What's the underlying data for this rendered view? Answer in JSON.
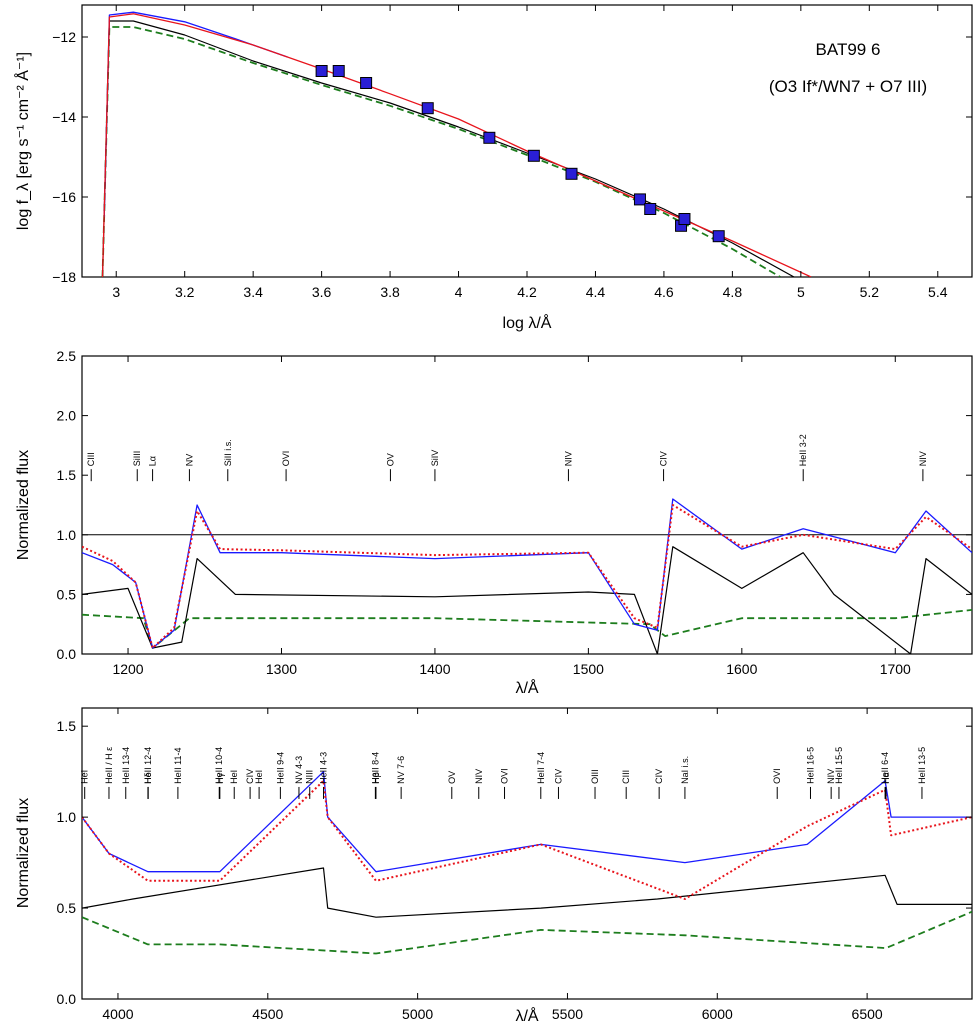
{
  "chart_data": [
    {
      "type": "scatter",
      "xlabel": "log λ/Å",
      "ylabel": "log f_λ [erg s⁻¹ cm⁻² Å⁻¹]",
      "xlim": [
        2.9,
        5.5
      ],
      "ylim": [
        -18,
        -11.2
      ],
      "xticks": [
        3.0,
        3.2,
        3.4,
        3.6,
        3.8,
        4.0,
        4.2,
        4.4,
        4.6,
        4.8,
        5.0,
        5.2,
        5.4
      ],
      "yticks": [
        -18,
        -16,
        -14,
        -12
      ],
      "annotations": [
        "BAT99 6",
        "(O3 If*/WN7 + O7 III)"
      ],
      "photometry": {
        "x": [
          3.6,
          3.65,
          3.73,
          3.91,
          4.09,
          4.22,
          4.33,
          4.53,
          4.56,
          4.65,
          4.66,
          4.76
        ],
        "y": [
          -12.85,
          -12.85,
          -13.15,
          -13.78,
          -14.52,
          -14.97,
          -15.42,
          -16.06,
          -16.3,
          -16.72,
          -16.55,
          -16.98
        ]
      },
      "series": [
        {
          "style": "red-solid",
          "x": [
            2.96,
            2.98,
            3.05,
            3.2,
            3.4,
            3.6,
            3.8,
            4.0,
            4.2,
            4.4,
            4.6,
            4.8,
            5.03
          ],
          "y": [
            -18,
            -11.5,
            -11.42,
            -11.7,
            -12.2,
            -12.8,
            -13.42,
            -14.05,
            -14.85,
            -15.6,
            -16.35,
            -17.1,
            -18
          ]
        },
        {
          "style": "blue-solid",
          "x": [
            2.965,
            2.98,
            3.05,
            3.2,
            3.35,
            3.5
          ],
          "y": [
            -16.5,
            -11.45,
            -11.38,
            -11.62,
            -12.05,
            -12.5
          ]
        },
        {
          "style": "black-solid",
          "x": [
            2.96,
            2.98,
            3.05,
            3.2,
            3.4,
            3.6,
            3.8,
            4.0,
            4.2,
            4.4,
            4.6,
            4.8,
            4.98
          ],
          "y": [
            -18,
            -11.6,
            -11.6,
            -11.95,
            -12.6,
            -13.15,
            -13.65,
            -14.25,
            -14.9,
            -15.55,
            -16.3,
            -17.15,
            -18
          ]
        },
        {
          "style": "green-dashed",
          "x": [
            2.96,
            2.98,
            3.05,
            3.2,
            3.4,
            3.6,
            3.8,
            4.0,
            4.2,
            4.4,
            4.6,
            4.8,
            4.94
          ],
          "y": [
            -18,
            -11.75,
            -11.75,
            -12.05,
            -12.65,
            -13.2,
            -13.72,
            -14.3,
            -14.95,
            -15.62,
            -16.4,
            -17.3,
            -18
          ]
        }
      ]
    },
    {
      "type": "line",
      "xlabel": "λ/Å",
      "ylabel": "Normalized flux",
      "xlim": [
        1170,
        1750
      ],
      "ylim": [
        0,
        2.5
      ],
      "xticks": [
        1200,
        1300,
        1400,
        1500,
        1600,
        1700
      ],
      "yticks": [
        0.0,
        0.5,
        1.0,
        1.5,
        2.0,
        2.5
      ],
      "ytick_labels": [
        "0.0",
        "0.5",
        "1.0",
        "1.5",
        "2.0",
        "2.5"
      ],
      "continuum": 1.0,
      "line_ids": [
        {
          "label": "CIII",
          "x": 1176,
          "y": 1.45
        },
        {
          "label": "SiIII",
          "x": 1206,
          "y": 1.45
        },
        {
          "label": "Lα",
          "x": 1216,
          "y": 1.45
        },
        {
          "label": "NV",
          "x": 1240,
          "y": 1.45
        },
        {
          "label": "SiII i.s.",
          "x": 1265,
          "y": 1.45
        },
        {
          "label": "OVI",
          "x": 1303,
          "y": 1.45
        },
        {
          "label": "OV",
          "x": 1371,
          "y": 1.45
        },
        {
          "label": "SiIV",
          "x": 1400,
          "y": 1.45
        },
        {
          "label": "NIV",
          "x": 1487,
          "y": 1.45
        },
        {
          "label": "CIV",
          "x": 1549,
          "y": 1.45
        },
        {
          "label": "HeII 3-2",
          "x": 1640,
          "y": 1.45
        },
        {
          "label": "NIV",
          "x": 1718,
          "y": 1.45
        }
      ],
      "series": [
        {
          "style": "blue-solid",
          "x": [
            1170,
            1190,
            1205,
            1216,
            1230,
            1245,
            1260,
            1300,
            1400,
            1500,
            1530,
            1545,
            1555,
            1600,
            1640,
            1700,
            1720,
            1750
          ],
          "y": [
            0.85,
            0.75,
            0.6,
            0.05,
            0.2,
            1.25,
            0.85,
            0.85,
            0.8,
            0.85,
            0.25,
            0.2,
            1.3,
            0.88,
            1.05,
            0.85,
            1.2,
            0.85
          ]
        },
        {
          "style": "red-dotted",
          "x": [
            1170,
            1190,
            1205,
            1216,
            1230,
            1245,
            1260,
            1300,
            1400,
            1500,
            1530,
            1545,
            1555,
            1600,
            1640,
            1700,
            1720,
            1750
          ],
          "y": [
            0.9,
            0.78,
            0.6,
            0.05,
            0.22,
            1.2,
            0.88,
            0.87,
            0.83,
            0.85,
            0.3,
            0.22,
            1.25,
            0.9,
            1.0,
            0.88,
            1.15,
            0.88
          ]
        },
        {
          "style": "black-solid",
          "x": [
            1170,
            1200,
            1216,
            1235,
            1245,
            1270,
            1400,
            1500,
            1530,
            1545,
            1555,
            1600,
            1640,
            1660,
            1710,
            1720,
            1750
          ],
          "y": [
            0.5,
            0.55,
            0.05,
            0.1,
            0.8,
            0.5,
            0.48,
            0.52,
            0.5,
            0.0,
            0.9,
            0.55,
            0.85,
            0.5,
            0.0,
            0.8,
            0.5
          ]
        },
        {
          "style": "green-dashed",
          "x": [
            1170,
            1210,
            1216,
            1240,
            1400,
            1540,
            1550,
            1600,
            1700,
            1750
          ],
          "y": [
            0.33,
            0.3,
            0.05,
            0.3,
            0.3,
            0.25,
            0.15,
            0.3,
            0.3,
            0.37
          ]
        }
      ]
    },
    {
      "type": "line",
      "xlabel": "λ/Å",
      "ylabel": "Normalized flux",
      "xlim": [
        3880,
        6850
      ],
      "ylim": [
        0,
        1.6
      ],
      "xticks": [
        4000,
        4500,
        5000,
        5500,
        6000,
        6500
      ],
      "yticks": [
        0.0,
        0.5,
        1.0,
        1.5
      ],
      "ytick_labels": [
        "0.0",
        "0.5",
        "1.0",
        "1.5"
      ],
      "line_ids": [
        {
          "label": "HeI",
          "x": 3889,
          "y": 1.1
        },
        {
          "label": "HeII / H ε",
          "x": 3970,
          "y": 1.1
        },
        {
          "label": "HeII 13-4",
          "x": 4026,
          "y": 1.1
        },
        {
          "label": "HeII 12-4",
          "x": 4100,
          "y": 1.1
        },
        {
          "label": "Hδ",
          "x": 4101,
          "y": 1.1
        },
        {
          "label": "HeII 11-4",
          "x": 4200,
          "y": 1.1
        },
        {
          "label": "HeII 10-4",
          "x": 4338,
          "y": 1.1
        },
        {
          "label": "Hγ",
          "x": 4340,
          "y": 1.1
        },
        {
          "label": "HeI",
          "x": 4388,
          "y": 1.1
        },
        {
          "label": "CIV",
          "x": 4441,
          "y": 1.1
        },
        {
          "label": "HeI",
          "x": 4471,
          "y": 1.1
        },
        {
          "label": "HeII 9-4",
          "x": 4542,
          "y": 1.1
        },
        {
          "label": "NV 4-3",
          "x": 4604,
          "y": 1.1
        },
        {
          "label": "NIII",
          "x": 4640,
          "y": 1.1
        },
        {
          "label": "HeII 4-3",
          "x": 4686,
          "y": 1.1
        },
        {
          "label": "HeII 8-4",
          "x": 4859,
          "y": 1.1
        },
        {
          "label": "Hβ",
          "x": 4861,
          "y": 1.1
        },
        {
          "label": "NV 7-6",
          "x": 4945,
          "y": 1.1
        },
        {
          "label": "OV",
          "x": 5114,
          "y": 1.1
        },
        {
          "label": "NIV",
          "x": 5204,
          "y": 1.1
        },
        {
          "label": "OVI",
          "x": 5290,
          "y": 1.1
        },
        {
          "label": "HeII 7-4",
          "x": 5411,
          "y": 1.1
        },
        {
          "label": "CIV",
          "x": 5470,
          "y": 1.1
        },
        {
          "label": "OIII",
          "x": 5592,
          "y": 1.1
        },
        {
          "label": "CIII",
          "x": 5696,
          "y": 1.1
        },
        {
          "label": "CIV",
          "x": 5806,
          "y": 1.1
        },
        {
          "label": "NaI i.s.",
          "x": 5892,
          "y": 1.1
        },
        {
          "label": "OVI",
          "x": 6200,
          "y": 1.1
        },
        {
          "label": "HeII 16-5",
          "x": 6311,
          "y": 1.1
        },
        {
          "label": "NIV",
          "x": 6380,
          "y": 1.1
        },
        {
          "label": "HeII 15-5",
          "x": 6406,
          "y": 1.1
        },
        {
          "label": "HeII 6-4",
          "x": 6560,
          "y": 1.1
        },
        {
          "label": "Hα",
          "x": 6563,
          "y": 1.1
        },
        {
          "label": "HeII 13-5",
          "x": 6683,
          "y": 1.1
        }
      ],
      "series": [
        {
          "style": "blue-solid",
          "x": [
            3880,
            3970,
            4100,
            4340,
            4686,
            4700,
            4861,
            5411,
            5892,
            6300,
            6560,
            6580,
            6850
          ],
          "y": [
            1.0,
            0.8,
            0.7,
            0.7,
            1.25,
            1.0,
            0.7,
            0.85,
            0.75,
            0.85,
            1.2,
            1.0,
            1.0
          ]
        },
        {
          "style": "red-dotted",
          "x": [
            3880,
            3970,
            4100,
            4340,
            4686,
            4700,
            4861,
            5411,
            5892,
            6300,
            6560,
            6580,
            6850
          ],
          "y": [
            1.0,
            0.8,
            0.65,
            0.65,
            1.2,
            1.0,
            0.65,
            0.85,
            0.55,
            0.95,
            1.15,
            0.9,
            1.0
          ]
        },
        {
          "style": "black-solid",
          "x": [
            3880,
            4050,
            4686,
            4700,
            4861,
            5411,
            5800,
            6560,
            6600,
            6850
          ],
          "y": [
            0.5,
            0.55,
            0.72,
            0.5,
            0.45,
            0.5,
            0.55,
            0.68,
            0.52,
            0.52
          ]
        },
        {
          "style": "green-dashed",
          "x": [
            3880,
            4100,
            4340,
            4861,
            5411,
            5892,
            6563,
            6850
          ],
          "y": [
            0.45,
            0.3,
            0.3,
            0.25,
            0.38,
            0.35,
            0.28,
            0.48
          ]
        }
      ]
    }
  ]
}
